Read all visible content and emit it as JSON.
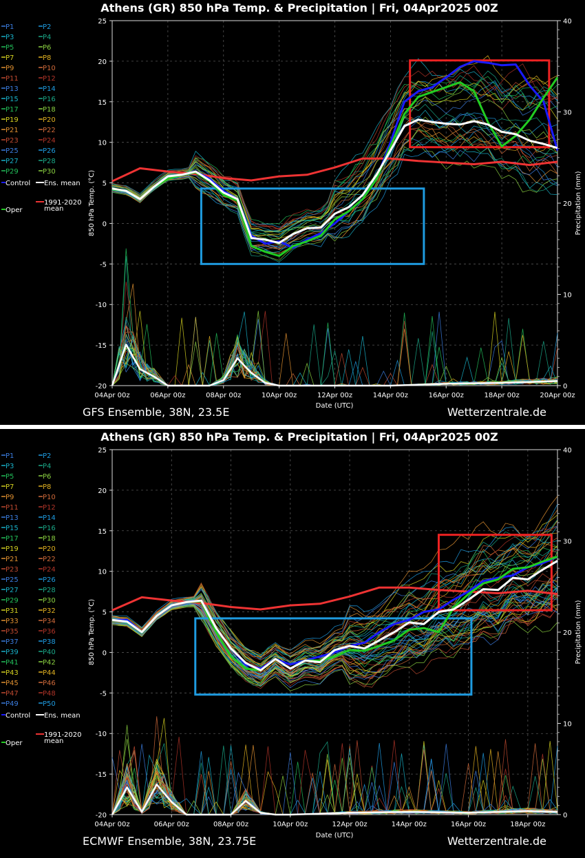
{
  "panels": [
    {
      "title": "Athens  (GR)  850 hPa Temp. & Precipitation | Fri, 04Apr2025 00Z",
      "source": "GFS Ensemble, 38N, 23.5E",
      "site": "Wetterzentrale.de",
      "legend": {
        "members": [
          "P1",
          "P2",
          "P3",
          "P4",
          "P5",
          "P6",
          "P7",
          "P8",
          "P9",
          "P10",
          "P11",
          "P12",
          "P13",
          "P14",
          "P15",
          "P16",
          "P17",
          "P18",
          "P19",
          "P20",
          "P21",
          "P22",
          "P23",
          "P24",
          "P25",
          "P26",
          "P27",
          "P28",
          "P29",
          "P30"
        ],
        "control": "Control",
        "ens_mean": "Ens. mean",
        "oper": "Oper",
        "climate_line1": "1991-2020",
        "climate_line2": "mean"
      },
      "colors": {
        "control": "#1a1aff",
        "mean": "#ffffff",
        "oper": "#22cc22",
        "climate": "#ee3333",
        "box_warm": "#ee2222",
        "box_cold": "#1e9be0"
      }
    },
    {
      "title": "Athens  (GR)  850 hPa Temp. & Precipitation | Fri, 04Apr2025 00Z",
      "source": "ECMWF Ensemble, 38N, 23.75E",
      "site": "Wetterzentrale.de",
      "legend": {
        "members": [
          "P1",
          "P2",
          "P3",
          "P4",
          "P5",
          "P6",
          "P7",
          "P8",
          "P9",
          "P10",
          "P11",
          "P12",
          "P13",
          "P14",
          "P15",
          "P16",
          "P17",
          "P18",
          "P19",
          "P20",
          "P21",
          "P22",
          "P23",
          "P24",
          "P25",
          "P26",
          "P27",
          "P28",
          "P29",
          "P30",
          "P31",
          "P32",
          "P33",
          "P34",
          "P35",
          "P36",
          "P37",
          "P38",
          "P39",
          "P40",
          "P41",
          "P42",
          "P43",
          "P44",
          "P45",
          "P46",
          "P47",
          "P48",
          "P49",
          "P50"
        ],
        "control": "Control",
        "ens_mean": "Ens. mean",
        "oper": "Oper",
        "climate_line1": "1991-2020",
        "climate_line2": "mean"
      },
      "colors": {
        "control": "#1a1aff",
        "mean": "#ffffff",
        "oper": "#22cc22",
        "climate": "#ee3333",
        "box_warm": "#ee2222",
        "box_cold": "#1e9be0"
      }
    }
  ],
  "chart_data": [
    {
      "type": "line",
      "title": "Athens  (GR)  850 hPa Temp. & Precipitation | Fri, 04Apr2025 00Z",
      "xlabel": "Date (UTC)",
      "ylabel": "850 hPa Temp. (°C)",
      "y2label": "Precipitation (mm)",
      "x_ticks": [
        "04Apr 00z",
        "06Apr 00z",
        "08Apr 00z",
        "10Apr 00z",
        "12Apr 00z",
        "14Apr 00z",
        "16Apr 00z",
        "18Apr 00z",
        "20Apr 00z"
      ],
      "xlim_days": [
        0,
        16
      ],
      "ylim": [
        -20,
        25
      ],
      "y_ticks": [
        -20,
        -15,
        -10,
        -5,
        0,
        5,
        10,
        15,
        20,
        25
      ],
      "y2lim": [
        0,
        40
      ],
      "y2_ticks": [
        0,
        10,
        20,
        30,
        40
      ],
      "grid": true,
      "member_count": 30,
      "series": [
        {
          "name": "Control",
          "x_days": [
            0,
            0.5,
            1,
            1.5,
            2,
            2.5,
            3,
            3.5,
            4,
            4.5,
            5,
            5.5,
            6,
            6.5,
            7,
            7.5,
            8,
            8.5,
            9,
            9.5,
            10,
            10.5,
            11,
            11.5,
            12,
            12.5,
            13,
            13.5,
            14,
            14.5,
            15,
            15.5,
            16
          ],
          "values": [
            4.2,
            4,
            3,
            4.5,
            5.8,
            6,
            6.4,
            5.5,
            4,
            3,
            -1.5,
            -2.5,
            -2.2,
            -3,
            -2,
            -1.2,
            0,
            1.5,
            3,
            5.5,
            10,
            15,
            16.3,
            16.8,
            18,
            19.3,
            20,
            19.8,
            19.5,
            19.6,
            17,
            15,
            9
          ]
        },
        {
          "name": "Ens. mean",
          "x_days": [
            0,
            0.5,
            1,
            1.5,
            2,
            2.5,
            3,
            3.5,
            4,
            4.5,
            5,
            5.5,
            6,
            6.5,
            7,
            7.5,
            8,
            8.5,
            9,
            9.5,
            10,
            10.5,
            11,
            11.5,
            12,
            12.5,
            13,
            13.5,
            14,
            14.5,
            15,
            15.5,
            16
          ],
          "values": [
            4.3,
            4,
            3,
            4.5,
            5.8,
            6,
            6.4,
            5.3,
            3.8,
            3,
            -1.8,
            -2,
            -2.4,
            -1.3,
            -0.6,
            -0.5,
            1.2,
            2,
            3.5,
            6,
            9,
            12,
            12.8,
            12.5,
            12.3,
            12.2,
            12.6,
            12.2,
            11.3,
            11,
            10.2,
            9.8,
            9.3
          ]
        },
        {
          "name": "Oper",
          "x_days": [
            0,
            0.5,
            1,
            1.5,
            2,
            2.5,
            3,
            3.5,
            4,
            4.5,
            5,
            5.5,
            6,
            6.5,
            7,
            7.5,
            8,
            8.5,
            9,
            9.5,
            10,
            10.5,
            11,
            11.5,
            12,
            12.5,
            13,
            13.5,
            14,
            14.5,
            15,
            15.5,
            16
          ],
          "values": [
            4.2,
            4,
            3,
            4.5,
            5.5,
            6,
            6.3,
            5.2,
            3.5,
            2.8,
            -2.8,
            -3.5,
            -4,
            -2.8,
            -2.2,
            -1.5,
            0.5,
            1.5,
            3,
            5.5,
            9.5,
            13.5,
            15.6,
            16.2,
            16.8,
            17.4,
            16.3,
            12.5,
            9.5,
            10.8,
            12.8,
            15.5,
            18
          ]
        },
        {
          "name": "1991-2020 mean",
          "x_days": [
            0,
            1,
            2,
            3,
            4,
            5,
            6,
            7,
            8,
            9,
            10,
            11,
            12,
            13,
            14,
            15,
            16
          ],
          "values": [
            5.2,
            6.8,
            6.4,
            6.1,
            5.6,
            5.3,
            5.8,
            6,
            6.9,
            8,
            8,
            7.7,
            7.5,
            7.3,
            7.6,
            7.2,
            7.6
          ]
        },
        {
          "name": "Ens. mean precipitation (mm)",
          "x_days": [
            0,
            0.5,
            1,
            1.5,
            2,
            2.5,
            3,
            3.5,
            4,
            4.5,
            5,
            5.5,
            6,
            8,
            10,
            12,
            14,
            16
          ],
          "values": [
            0,
            4.5,
            1.8,
            1,
            0,
            0,
            0,
            0,
            0.6,
            3,
            1.4,
            0.3,
            0,
            0,
            0,
            0.2,
            0.3,
            0.5
          ]
        }
      ]
    },
    {
      "type": "line",
      "title": "Athens  (GR)  850 hPa Temp. & Precipitation | Fri, 04Apr2025 00Z",
      "xlabel": "Date (UTC)",
      "ylabel": "850 hPa Temp. (°C)",
      "y2label": "Precipitation (mm)",
      "x_ticks": [
        "04Apr 00z",
        "06Apr 00z",
        "08Apr 00z",
        "10Apr 00z",
        "12Apr 00z",
        "14Apr 00z",
        "16Apr 00z",
        "18Apr 00z"
      ],
      "xlim_days": [
        0,
        15
      ],
      "ylim": [
        -20,
        25
      ],
      "y_ticks": [
        -20,
        -15,
        -10,
        -5,
        0,
        5,
        10,
        15,
        20,
        25
      ],
      "y2lim": [
        0,
        40
      ],
      "y2_ticks": [
        0,
        10,
        20,
        30,
        40
      ],
      "grid": true,
      "member_count": 50,
      "series": [
        {
          "name": "Control",
          "x_days": [
            0,
            0.5,
            1,
            1.5,
            2,
            2.5,
            3,
            3.5,
            4,
            4.5,
            5,
            5.5,
            6,
            6.5,
            7,
            7.5,
            8,
            8.5,
            9,
            9.5,
            10,
            10.5,
            11,
            11.5,
            12,
            12.5,
            13,
            13.5,
            14,
            14.5,
            15
          ],
          "values": [
            4,
            4,
            2.5,
            4.5,
            5.8,
            6.2,
            6.4,
            3,
            0.5,
            -1.5,
            -2,
            -0.8,
            -1.5,
            -1,
            -0.5,
            0,
            0.8,
            1.2,
            2.5,
            3.5,
            4,
            5,
            5.3,
            6.5,
            7.5,
            8.8,
            9.2,
            9.5,
            10.5,
            11,
            11.8
          ]
        },
        {
          "name": "Ens. mean",
          "x_days": [
            0,
            0.5,
            1,
            1.5,
            2,
            2.5,
            3,
            3.5,
            4,
            4.5,
            5,
            5.5,
            6,
            6.5,
            7,
            7.5,
            8,
            8.5,
            9,
            9.5,
            10,
            10.5,
            11,
            11.5,
            12,
            12.5,
            13,
            13.5,
            14,
            14.5,
            15
          ],
          "values": [
            4,
            3.8,
            2.5,
            4.5,
            5.8,
            6.2,
            6.4,
            3,
            0.5,
            -1.3,
            -2.2,
            -0.8,
            -2,
            -1,
            -1.2,
            0.3,
            0.8,
            0.5,
            1.5,
            2.5,
            3.7,
            3.5,
            5,
            5.3,
            6.5,
            7.8,
            7.7,
            9.2,
            9,
            10.2,
            11.3
          ]
        },
        {
          "name": "Oper",
          "x_days": [
            0,
            0.5,
            1,
            1.5,
            2,
            2.5,
            3,
            3.5,
            4,
            4.5,
            5,
            5.5,
            6,
            6.5,
            7,
            7.5,
            8,
            8.5,
            9,
            9.5,
            10,
            10.5,
            11,
            11.5,
            12,
            12.5,
            13,
            13.5,
            14,
            14.5,
            15
          ],
          "values": [
            4,
            3.8,
            2.5,
            4.5,
            5.8,
            6.2,
            6.3,
            2.5,
            -0.5,
            -2,
            -2.2,
            -0.8,
            -2,
            -1,
            -1,
            -0.5,
            0.3,
            0.2,
            0.8,
            1.5,
            2.8,
            3,
            2.5,
            5.5,
            7.2,
            8.5,
            9,
            10.3,
            10.5,
            11.2,
            11.8
          ]
        },
        {
          "name": "1991-2020 mean",
          "x_days": [
            0,
            1,
            2,
            3,
            4,
            5,
            6,
            7,
            8,
            9,
            10,
            11,
            12,
            13,
            14,
            15
          ],
          "values": [
            5.2,
            6.8,
            6.4,
            6.1,
            5.6,
            5.3,
            5.8,
            6,
            6.9,
            8,
            8,
            7.7,
            7.5,
            7.3,
            7.6,
            7.2
          ]
        },
        {
          "name": "Ens. mean precipitation (mm)",
          "x_days": [
            0,
            0.5,
            1,
            1.5,
            2,
            2.5,
            3,
            3.5,
            4,
            4.5,
            5,
            5.5,
            6,
            8,
            10,
            12,
            14,
            15
          ],
          "values": [
            0,
            3,
            0.3,
            3.3,
            1.4,
            0,
            0,
            0,
            0,
            1.5,
            0.2,
            0,
            0,
            0.2,
            0.3,
            0.2,
            0.4,
            0.3
          ]
        }
      ]
    }
  ]
}
